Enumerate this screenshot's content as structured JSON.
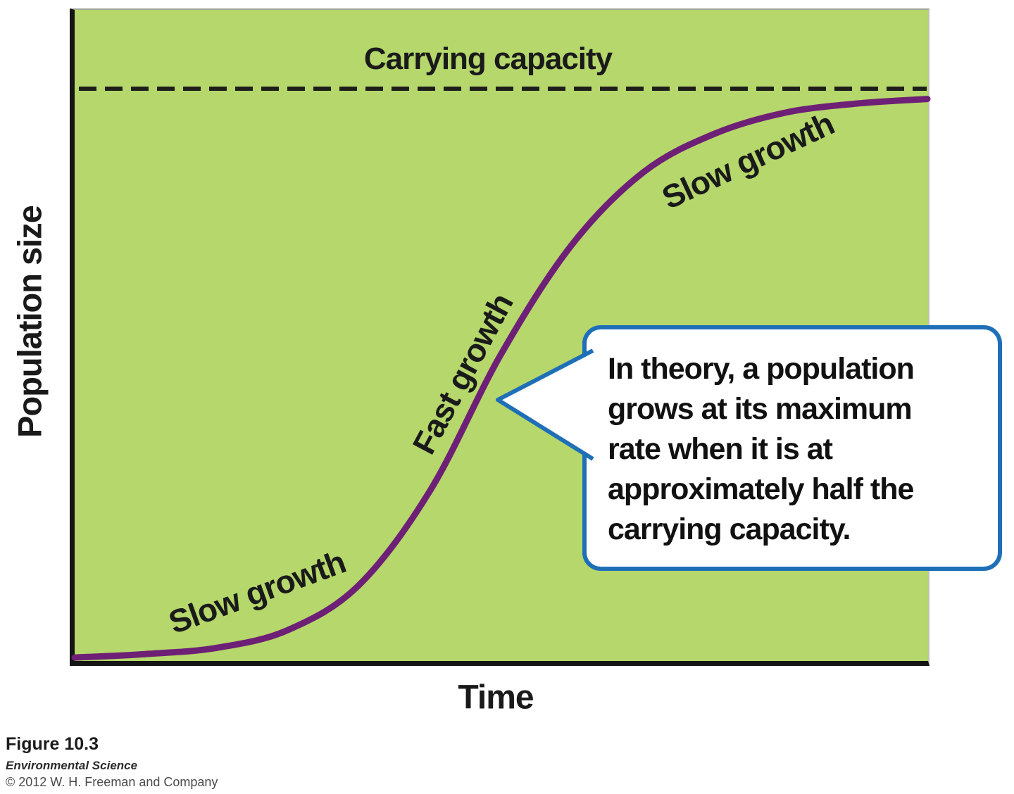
{
  "figure": {
    "plot": {
      "background_color": "#b5d76b",
      "curve_color": "#6e2076",
      "axis_color": "#151515",
      "dashed_line_color": "#1d1d1b",
      "callout_border_color": "#1e6fb8"
    },
    "labels": {
      "carrying_capacity": "Carrying capacity",
      "slow_growth_bottom": "Slow growth",
      "fast_growth": "Fast growth",
      "slow_growth_top": "Slow growth",
      "y_axis": "Population size",
      "x_axis": "Time"
    },
    "callout": {
      "lines": [
        "In theory, a population",
        "grows at its maximum",
        "rate when it is at",
        "approximately half the",
        "carrying capacity."
      ]
    },
    "caption": {
      "figure_number": "Figure 10.3",
      "book_title": "Environmental Science",
      "copyright": "© 2012 W. H. Freeman and Company"
    }
  },
  "chart_data": {
    "type": "line",
    "title": "",
    "xlabel": "Time",
    "ylabel": "Population size",
    "grid": false,
    "legend": "none",
    "axis_ticks": "none shown (qualitative axes)",
    "x_note": "x values are fractions of the time axis length",
    "y_note": "y values are fractions of the carrying capacity K",
    "carrying_capacity_level": 1.0,
    "ylim": [
      0,
      1.12
    ],
    "series": [
      {
        "name": "Population size (logistic growth)",
        "x": [
          0,
          0.083,
          0.167,
          0.25,
          0.333,
          0.417,
          0.5,
          0.583,
          0.667,
          0.75,
          0.833,
          0.917,
          1.0
        ],
        "y": [
          0.006,
          0.012,
          0.023,
          0.054,
          0.132,
          0.298,
          0.536,
          0.727,
          0.854,
          0.921,
          0.958,
          0.974,
          0.982
        ]
      }
    ],
    "annotations": [
      {
        "text": "Carrying capacity",
        "type": "dashed_reference_line",
        "y": 1.0
      },
      {
        "text": "Slow growth",
        "type": "curve_phase_label",
        "near_x": 0.2
      },
      {
        "text": "Fast growth",
        "type": "curve_phase_label",
        "near_x": 0.45
      },
      {
        "text": "Slow growth",
        "type": "curve_phase_label",
        "near_x": 0.78
      },
      {
        "text": "In theory, a population grows at its maximum rate when it is at approximately half the carrying capacity.",
        "type": "callout",
        "points_to_x": 0.5,
        "points_to_y": 0.5
      }
    ]
  }
}
